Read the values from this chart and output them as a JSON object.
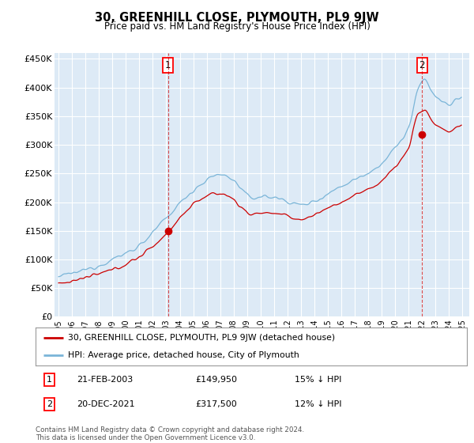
{
  "title": "30, GREENHILL CLOSE, PLYMOUTH, PL9 9JW",
  "subtitle": "Price paid vs. HM Land Registry's House Price Index (HPI)",
  "ylim": [
    0,
    460000
  ],
  "yticks": [
    0,
    50000,
    100000,
    150000,
    200000,
    250000,
    300000,
    350000,
    400000,
    450000
  ],
  "ytick_labels": [
    "£0",
    "£50K",
    "£100K",
    "£150K",
    "£200K",
    "£250K",
    "£300K",
    "£350K",
    "£400K",
    "£450K"
  ],
  "plot_bg_color": "#ddeaf6",
  "grid_color": "#ffffff",
  "hpi_color": "#7ab5d8",
  "price_color": "#cc0000",
  "sale1_x": 2003.13,
  "sale1_price": 149950,
  "sale2_x": 2022.0,
  "sale2_price": 317500,
  "legend_line1": "30, GREENHILL CLOSE, PLYMOUTH, PL9 9JW (detached house)",
  "legend_line2": "HPI: Average price, detached house, City of Plymouth",
  "footer": "Contains HM Land Registry data © Crown copyright and database right 2024.\nThis data is licensed under the Open Government Licence v3.0.",
  "start_year": 1995,
  "end_year": 2025
}
